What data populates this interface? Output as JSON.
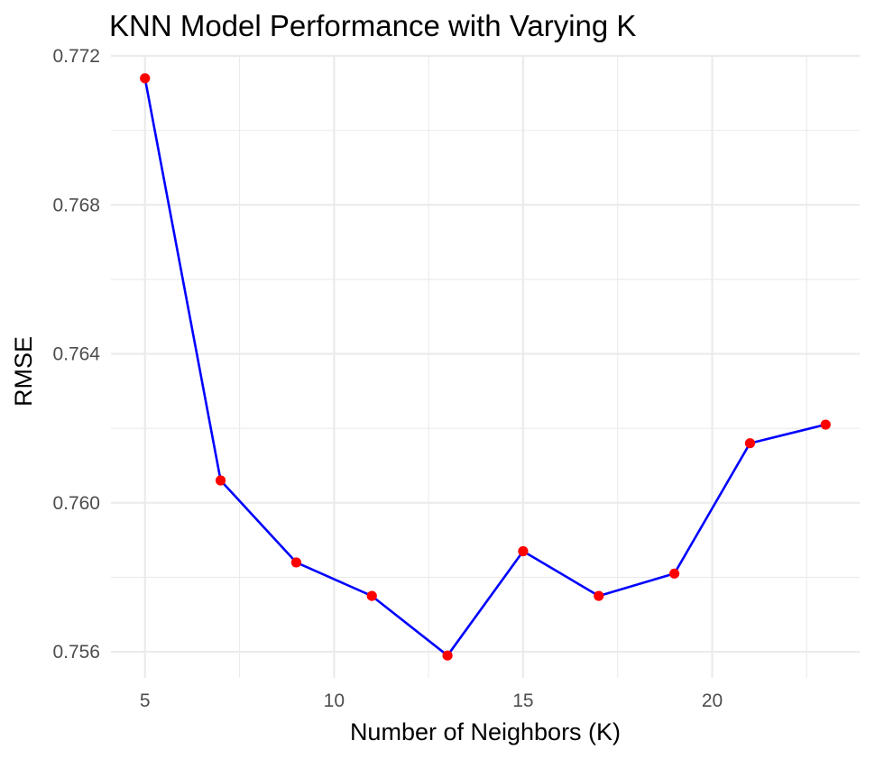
{
  "chart_data": {
    "type": "line",
    "title": "KNN Model Performance with Varying K",
    "xlabel": "Number of Neighbors (K)",
    "ylabel": "RMSE",
    "x": [
      5,
      7,
      9,
      11,
      13,
      15,
      17,
      19,
      21,
      23
    ],
    "series": [
      {
        "values": [
          0.7714,
          0.7606,
          0.7584,
          0.7575,
          0.7559,
          0.7587,
          0.7575,
          0.7581,
          0.7616,
          0.7621
        ],
        "line_color": "#0000ff",
        "point_color": "#ff0000"
      }
    ],
    "xlim": [
      4.1,
      23.9
    ],
    "ylim": [
      0.7553,
      0.772
    ],
    "x_ticks": [
      5,
      10,
      15,
      20
    ],
    "x_tick_labels": [
      "5",
      "10",
      "15",
      "20"
    ],
    "x_minor_ticks": [
      7.5,
      12.5,
      17.5,
      22.5
    ],
    "y_ticks": [
      0.756,
      0.76,
      0.764,
      0.768,
      0.772
    ],
    "y_tick_labels": [
      "0.756",
      "0.760",
      "0.764",
      "0.768",
      "0.772"
    ],
    "y_minor_ticks": [
      0.758,
      0.762,
      0.766,
      0.77
    ],
    "grid": true,
    "legend": "none"
  }
}
